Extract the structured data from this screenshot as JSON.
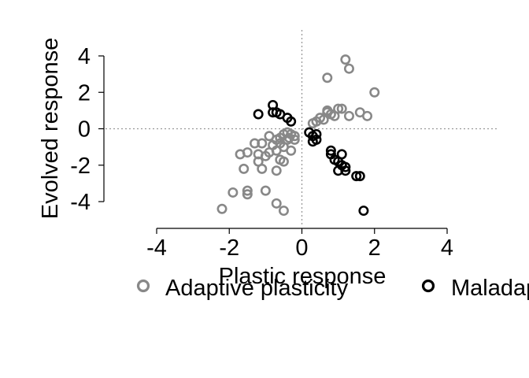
{
  "chart_data": {
    "type": "scatter",
    "title": "",
    "xlabel": "Plastic response",
    "ylabel": "Evolved response",
    "xlim": [
      -4,
      4
    ],
    "ylim": [
      -4,
      4
    ],
    "xticks": [
      "-4",
      "-2",
      "0",
      "2",
      "4"
    ],
    "yticks": [
      "4",
      "2",
      "0",
      "-2",
      "-4"
    ],
    "reference_lines": {
      "x": 0,
      "y": 0,
      "style": "dotted"
    },
    "legend_position": "bottom",
    "series": [
      {
        "name": "Adaptive plasticity",
        "color": "#888888",
        "marker": "open-circle",
        "points": [
          [
            -2.2,
            -4.4
          ],
          [
            -1.9,
            -3.5
          ],
          [
            -1.5,
            -3.4
          ],
          [
            -1.5,
            -3.6
          ],
          [
            -1.0,
            -3.4
          ],
          [
            -0.7,
            -4.1
          ],
          [
            -0.5,
            -4.5
          ],
          [
            -1.7,
            -1.4
          ],
          [
            -1.6,
            -2.2
          ],
          [
            -1.5,
            -1.3
          ],
          [
            -1.3,
            -0.8
          ],
          [
            -1.2,
            -1.4
          ],
          [
            -1.1,
            -0.8
          ],
          [
            -1.2,
            -1.8
          ],
          [
            -1.1,
            -2.2
          ],
          [
            -1.0,
            -1.5
          ],
          [
            -0.9,
            -1.3
          ],
          [
            -0.9,
            -0.4
          ],
          [
            -0.8,
            -0.9
          ],
          [
            -0.7,
            -0.6
          ],
          [
            -0.7,
            -1.2
          ],
          [
            -0.7,
            -2.3
          ],
          [
            -0.6,
            -1.7
          ],
          [
            -0.6,
            -0.8
          ],
          [
            -0.6,
            -0.5
          ],
          [
            -0.5,
            -1.0
          ],
          [
            -0.5,
            -0.3
          ],
          [
            -0.5,
            -1.8
          ],
          [
            -0.4,
            -0.6
          ],
          [
            -0.4,
            -0.2
          ],
          [
            -0.35,
            -0.5
          ],
          [
            -0.3,
            -1.2
          ],
          [
            -0.3,
            -0.3
          ],
          [
            -0.2,
            -0.4
          ],
          [
            -0.2,
            -0.6
          ],
          [
            0.3,
            0.3
          ],
          [
            0.4,
            0.4
          ],
          [
            0.5,
            0.6
          ],
          [
            0.6,
            0.5
          ],
          [
            0.7,
            0.9
          ],
          [
            0.7,
            1.0
          ],
          [
            0.8,
            0.8
          ],
          [
            0.9,
            0.7
          ],
          [
            1.0,
            1.1
          ],
          [
            1.1,
            1.1
          ],
          [
            1.2,
            3.8
          ],
          [
            1.3,
            3.3
          ],
          [
            0.7,
            2.8
          ],
          [
            1.6,
            0.9
          ],
          [
            1.8,
            0.7
          ],
          [
            2.0,
            2.0
          ],
          [
            1.3,
            0.7
          ]
        ]
      },
      {
        "name": "Maladaptive plasticity",
        "color": "#000000",
        "marker": "open-circle",
        "points": [
          [
            -1.2,
            0.8
          ],
          [
            -0.8,
            1.3
          ],
          [
            -0.8,
            0.9
          ],
          [
            -0.7,
            0.9
          ],
          [
            -0.6,
            0.8
          ],
          [
            -0.4,
            0.6
          ],
          [
            -0.3,
            0.4
          ],
          [
            0.2,
            -0.2
          ],
          [
            0.3,
            -0.4
          ],
          [
            0.4,
            -0.3
          ],
          [
            0.3,
            -0.7
          ],
          [
            0.4,
            -0.6
          ],
          [
            0.8,
            -1.2
          ],
          [
            0.8,
            -1.4
          ],
          [
            0.9,
            -1.7
          ],
          [
            1.0,
            -1.8
          ],
          [
            1.1,
            -2.0
          ],
          [
            1.0,
            -2.3
          ],
          [
            1.1,
            -1.4
          ],
          [
            1.2,
            -2.1
          ],
          [
            1.2,
            -2.3
          ],
          [
            1.5,
            -2.6
          ],
          [
            1.6,
            -2.6
          ],
          [
            1.7,
            -4.5
          ]
        ]
      }
    ]
  }
}
